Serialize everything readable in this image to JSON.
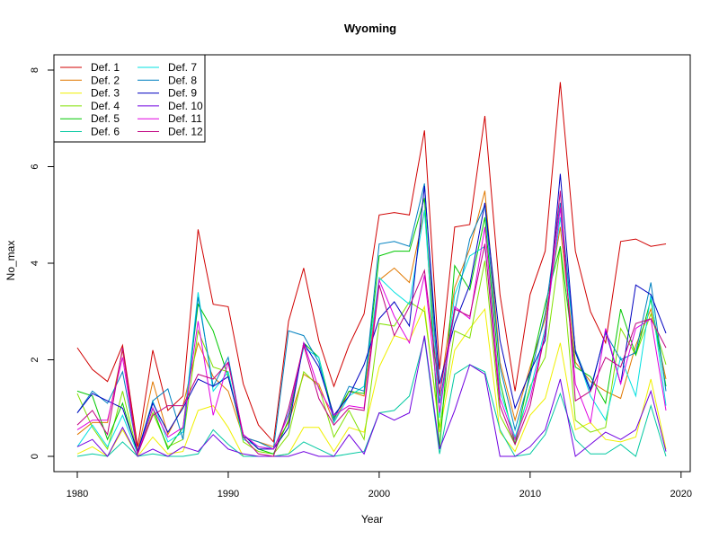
{
  "chart_data": {
    "type": "line",
    "title": "Wyoming",
    "xlabel": "Year",
    "ylabel": "No_max",
    "xlim": [
      1980,
      2019
    ],
    "ylim": [
      0,
      8
    ],
    "xticks": [
      1980,
      1990,
      2000,
      2010,
      2020
    ],
    "yticks": [
      0,
      2,
      4,
      6,
      8
    ],
    "grid": false,
    "legend_position": "top-left",
    "x": [
      1980,
      1981,
      1982,
      1983,
      1984,
      1985,
      1986,
      1987,
      1988,
      1989,
      1990,
      1991,
      1992,
      1993,
      1994,
      1995,
      1996,
      1997,
      1998,
      1999,
      2000,
      2001,
      2002,
      2003,
      2004,
      2005,
      2006,
      2007,
      2008,
      2009,
      2010,
      2011,
      2012,
      2013,
      2014,
      2015,
      2016,
      2017,
      2018,
      2019
    ],
    "series": [
      {
        "name": "Def. 1",
        "color": "#d00000",
        "values": [
          2.25,
          1.8,
          1.55,
          2.3,
          0.2,
          2.2,
          0.95,
          1.25,
          4.7,
          3.15,
          3.1,
          1.5,
          0.65,
          0.3,
          2.8,
          3.9,
          2.4,
          1.45,
          2.3,
          2.95,
          5.0,
          5.05,
          5.0,
          6.75,
          1.8,
          4.75,
          4.8,
          7.05,
          3.35,
          1.35,
          3.35,
          4.25,
          7.75,
          4.25,
          3.0,
          2.35,
          4.45,
          4.5,
          4.35,
          4.4
        ]
      },
      {
        "name": "Def. 2",
        "color": "#e07800",
        "values": [
          0.45,
          0.7,
          0.7,
          2.2,
          0.1,
          1.55,
          0.45,
          1.05,
          2.35,
          1.65,
          1.35,
          0.4,
          0.3,
          0.2,
          0.7,
          1.7,
          1.5,
          0.7,
          1.35,
          1.25,
          3.65,
          3.9,
          3.6,
          5.1,
          1.25,
          3.5,
          4.3,
          5.5,
          1.95,
          0.75,
          1.85,
          2.85,
          4.75,
          1.95,
          1.55,
          1.35,
          1.2,
          2.3,
          3.05,
          1.6
        ]
      },
      {
        "name": "Def. 3",
        "color": "#f0f000",
        "values": [
          0.05,
          0.2,
          0.0,
          0.55,
          0.0,
          0.4,
          0.05,
          0.1,
          0.95,
          1.05,
          0.6,
          0.0,
          0.0,
          0.0,
          0.05,
          0.6,
          0.6,
          0.1,
          0.6,
          0.5,
          1.85,
          2.5,
          2.4,
          3.1,
          0.5,
          2.2,
          2.65,
          3.05,
          0.5,
          0.1,
          0.85,
          1.2,
          2.35,
          0.55,
          0.7,
          0.35,
          0.3,
          0.4,
          1.6,
          0.15
        ]
      },
      {
        "name": "Def. 4",
        "color": "#80e000",
        "values": [
          1.3,
          0.6,
          0.15,
          1.35,
          0.05,
          0.9,
          0.2,
          0.35,
          2.6,
          1.85,
          1.75,
          0.3,
          0.1,
          0.05,
          0.45,
          1.75,
          1.45,
          0.4,
          0.95,
          0.35,
          2.75,
          2.7,
          3.2,
          3.0,
          0.6,
          2.6,
          2.45,
          4.05,
          0.85,
          0.25,
          1.45,
          2.05,
          4.35,
          0.75,
          0.5,
          0.6,
          2.65,
          2.1,
          2.95,
          1.9
        ]
      },
      {
        "name": "Def. 5",
        "color": "#00c800",
        "values": [
          1.35,
          1.25,
          0.35,
          1.1,
          0.05,
          1.0,
          0.15,
          0.6,
          3.15,
          2.6,
          1.65,
          0.45,
          0.15,
          0.05,
          0.75,
          2.35,
          2.05,
          0.8,
          1.35,
          1.3,
          4.15,
          4.25,
          4.25,
          5.35,
          0.15,
          3.95,
          3.45,
          4.95,
          1.55,
          0.25,
          1.75,
          3.15,
          4.35,
          1.85,
          1.65,
          1.1,
          3.05,
          2.1,
          3.25,
          1.45
        ]
      },
      {
        "name": "Def. 6",
        "color": "#00c8a0",
        "values": [
          0.0,
          0.05,
          0.0,
          0.3,
          0.0,
          0.05,
          0.0,
          0.0,
          0.05,
          0.55,
          0.25,
          0.0,
          0.0,
          0.0,
          0.05,
          0.3,
          0.15,
          0.0,
          0.05,
          0.1,
          0.9,
          0.95,
          1.25,
          2.45,
          0.05,
          1.7,
          1.9,
          1.75,
          0.55,
          0.0,
          0.05,
          0.45,
          1.3,
          0.35,
          0.05,
          0.05,
          0.25,
          0.0,
          1.05,
          0.0
        ]
      },
      {
        "name": "Def. 7",
        "color": "#00e0e0",
        "values": [
          0.2,
          0.65,
          0.2,
          0.85,
          0.05,
          1.15,
          0.3,
          0.5,
          3.4,
          1.35,
          1.75,
          0.35,
          0.2,
          0.15,
          0.9,
          2.25,
          2.05,
          0.7,
          1.25,
          1.45,
          3.7,
          3.4,
          3.15,
          5.1,
          0.8,
          3.35,
          4.15,
          4.35,
          1.35,
          0.4,
          1.35,
          2.65,
          4.95,
          2.2,
          1.25,
          0.75,
          2.05,
          1.25,
          3.35,
          1.05
        ]
      },
      {
        "name": "Def. 8",
        "color": "#0080c0",
        "values": [
          0.9,
          1.35,
          1.1,
          1.75,
          0.1,
          1.15,
          1.4,
          0.35,
          3.3,
          1.45,
          2.05,
          0.4,
          0.3,
          0.15,
          2.6,
          2.5,
          1.95,
          0.75,
          1.45,
          1.35,
          4.4,
          4.45,
          4.35,
          5.65,
          1.1,
          3.0,
          4.5,
          5.2,
          1.85,
          0.55,
          1.65,
          2.95,
          5.25,
          2.2,
          1.4,
          2.55,
          2.0,
          2.15,
          3.6,
          1.35
        ]
      },
      {
        "name": "Def. 9",
        "color": "#0000c0",
        "values": [
          0.9,
          1.3,
          1.15,
          1.0,
          0.1,
          1.1,
          0.5,
          1.0,
          1.6,
          1.45,
          1.65,
          0.45,
          0.15,
          0.15,
          0.6,
          2.35,
          1.85,
          0.85,
          1.25,
          1.9,
          2.85,
          3.2,
          2.7,
          5.6,
          1.5,
          2.75,
          3.55,
          5.25,
          2.4,
          1.0,
          1.75,
          2.4,
          5.85,
          2.15,
          1.35,
          2.6,
          1.5,
          3.55,
          3.35,
          2.55
        ]
      },
      {
        "name": "Def. 10",
        "color": "#7000e0",
        "values": [
          0.2,
          0.35,
          0.0,
          0.6,
          0.0,
          0.15,
          0.0,
          0.2,
          0.1,
          0.45,
          0.15,
          0.05,
          0.0,
          0.0,
          0.0,
          0.1,
          0.0,
          0.0,
          0.45,
          0.05,
          0.9,
          0.75,
          0.9,
          2.5,
          0.15,
          0.95,
          1.9,
          1.7,
          0.0,
          0.0,
          0.2,
          0.55,
          1.6,
          0.0,
          0.25,
          0.5,
          0.35,
          0.55,
          1.35,
          0.1
        ]
      },
      {
        "name": "Def. 11",
        "color": "#e000e0",
        "values": [
          0.55,
          0.75,
          0.75,
          2.05,
          0.05,
          1.0,
          0.4,
          0.6,
          2.8,
          0.85,
          1.95,
          0.45,
          0.2,
          0.15,
          0.85,
          2.35,
          1.4,
          0.85,
          1.05,
          1.0,
          3.65,
          2.9,
          2.35,
          3.75,
          0.9,
          3.1,
          2.85,
          4.75,
          1.2,
          0.35,
          1.2,
          2.55,
          5.15,
          1.5,
          0.7,
          2.65,
          1.5,
          2.65,
          2.85,
          0.95
        ]
      },
      {
        "name": "Def. 12",
        "color": "#c00080",
        "values": [
          0.65,
          0.95,
          0.45,
          2.25,
          0.05,
          0.85,
          1.05,
          1.05,
          1.7,
          1.6,
          1.95,
          0.4,
          0.05,
          0.0,
          1.0,
          2.3,
          1.2,
          0.65,
          1.0,
          0.95,
          3.55,
          2.5,
          3.1,
          3.85,
          1.3,
          3.05,
          2.9,
          4.4,
          1.05,
          0.25,
          1.05,
          2.55,
          5.5,
          1.15,
          1.35,
          2.05,
          1.85,
          2.75,
          2.85,
          2.25
        ]
      }
    ]
  }
}
